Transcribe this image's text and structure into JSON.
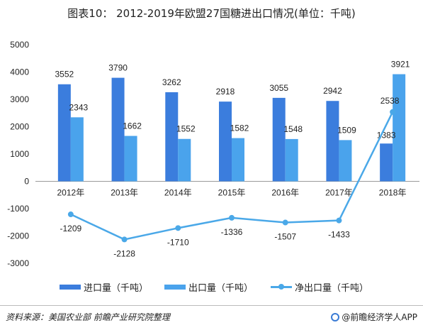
{
  "title": "图表10：  2012-2019年欧盟27国糖进出口情况(单位：千吨)",
  "chart_data": {
    "type": "bar",
    "categories": [
      "2012年",
      "2013年",
      "2014年",
      "2015年",
      "2016年",
      "2017年",
      "2018年"
    ],
    "series": [
      {
        "name": "进口量（千吨）",
        "kind": "bar",
        "color": "#3b7ddd",
        "values": [
          3552,
          3790,
          3262,
          2918,
          3055,
          2942,
          1383
        ]
      },
      {
        "name": "出口量（千吨）",
        "kind": "bar",
        "color": "#4aa3ec",
        "values": [
          2343,
          1662,
          1552,
          1582,
          1548,
          1509,
          3921
        ]
      },
      {
        "name": "净出口量（千吨）",
        "kind": "line",
        "color": "#4aa8e8",
        "values": [
          -1209,
          -2128,
          -1710,
          -1336,
          -1507,
          -1433,
          2538
        ]
      }
    ],
    "ylim": [
      -3000,
      5000
    ],
    "yticks": [
      -3000,
      -2000,
      -1000,
      0,
      1000,
      2000,
      3000,
      4000,
      5000
    ],
    "grid": false,
    "legend_position": "bottom"
  },
  "footer": {
    "source": "资料来源：美国农业部 前瞻产业研究院整理",
    "brand": "@前瞻经济学人APP"
  }
}
